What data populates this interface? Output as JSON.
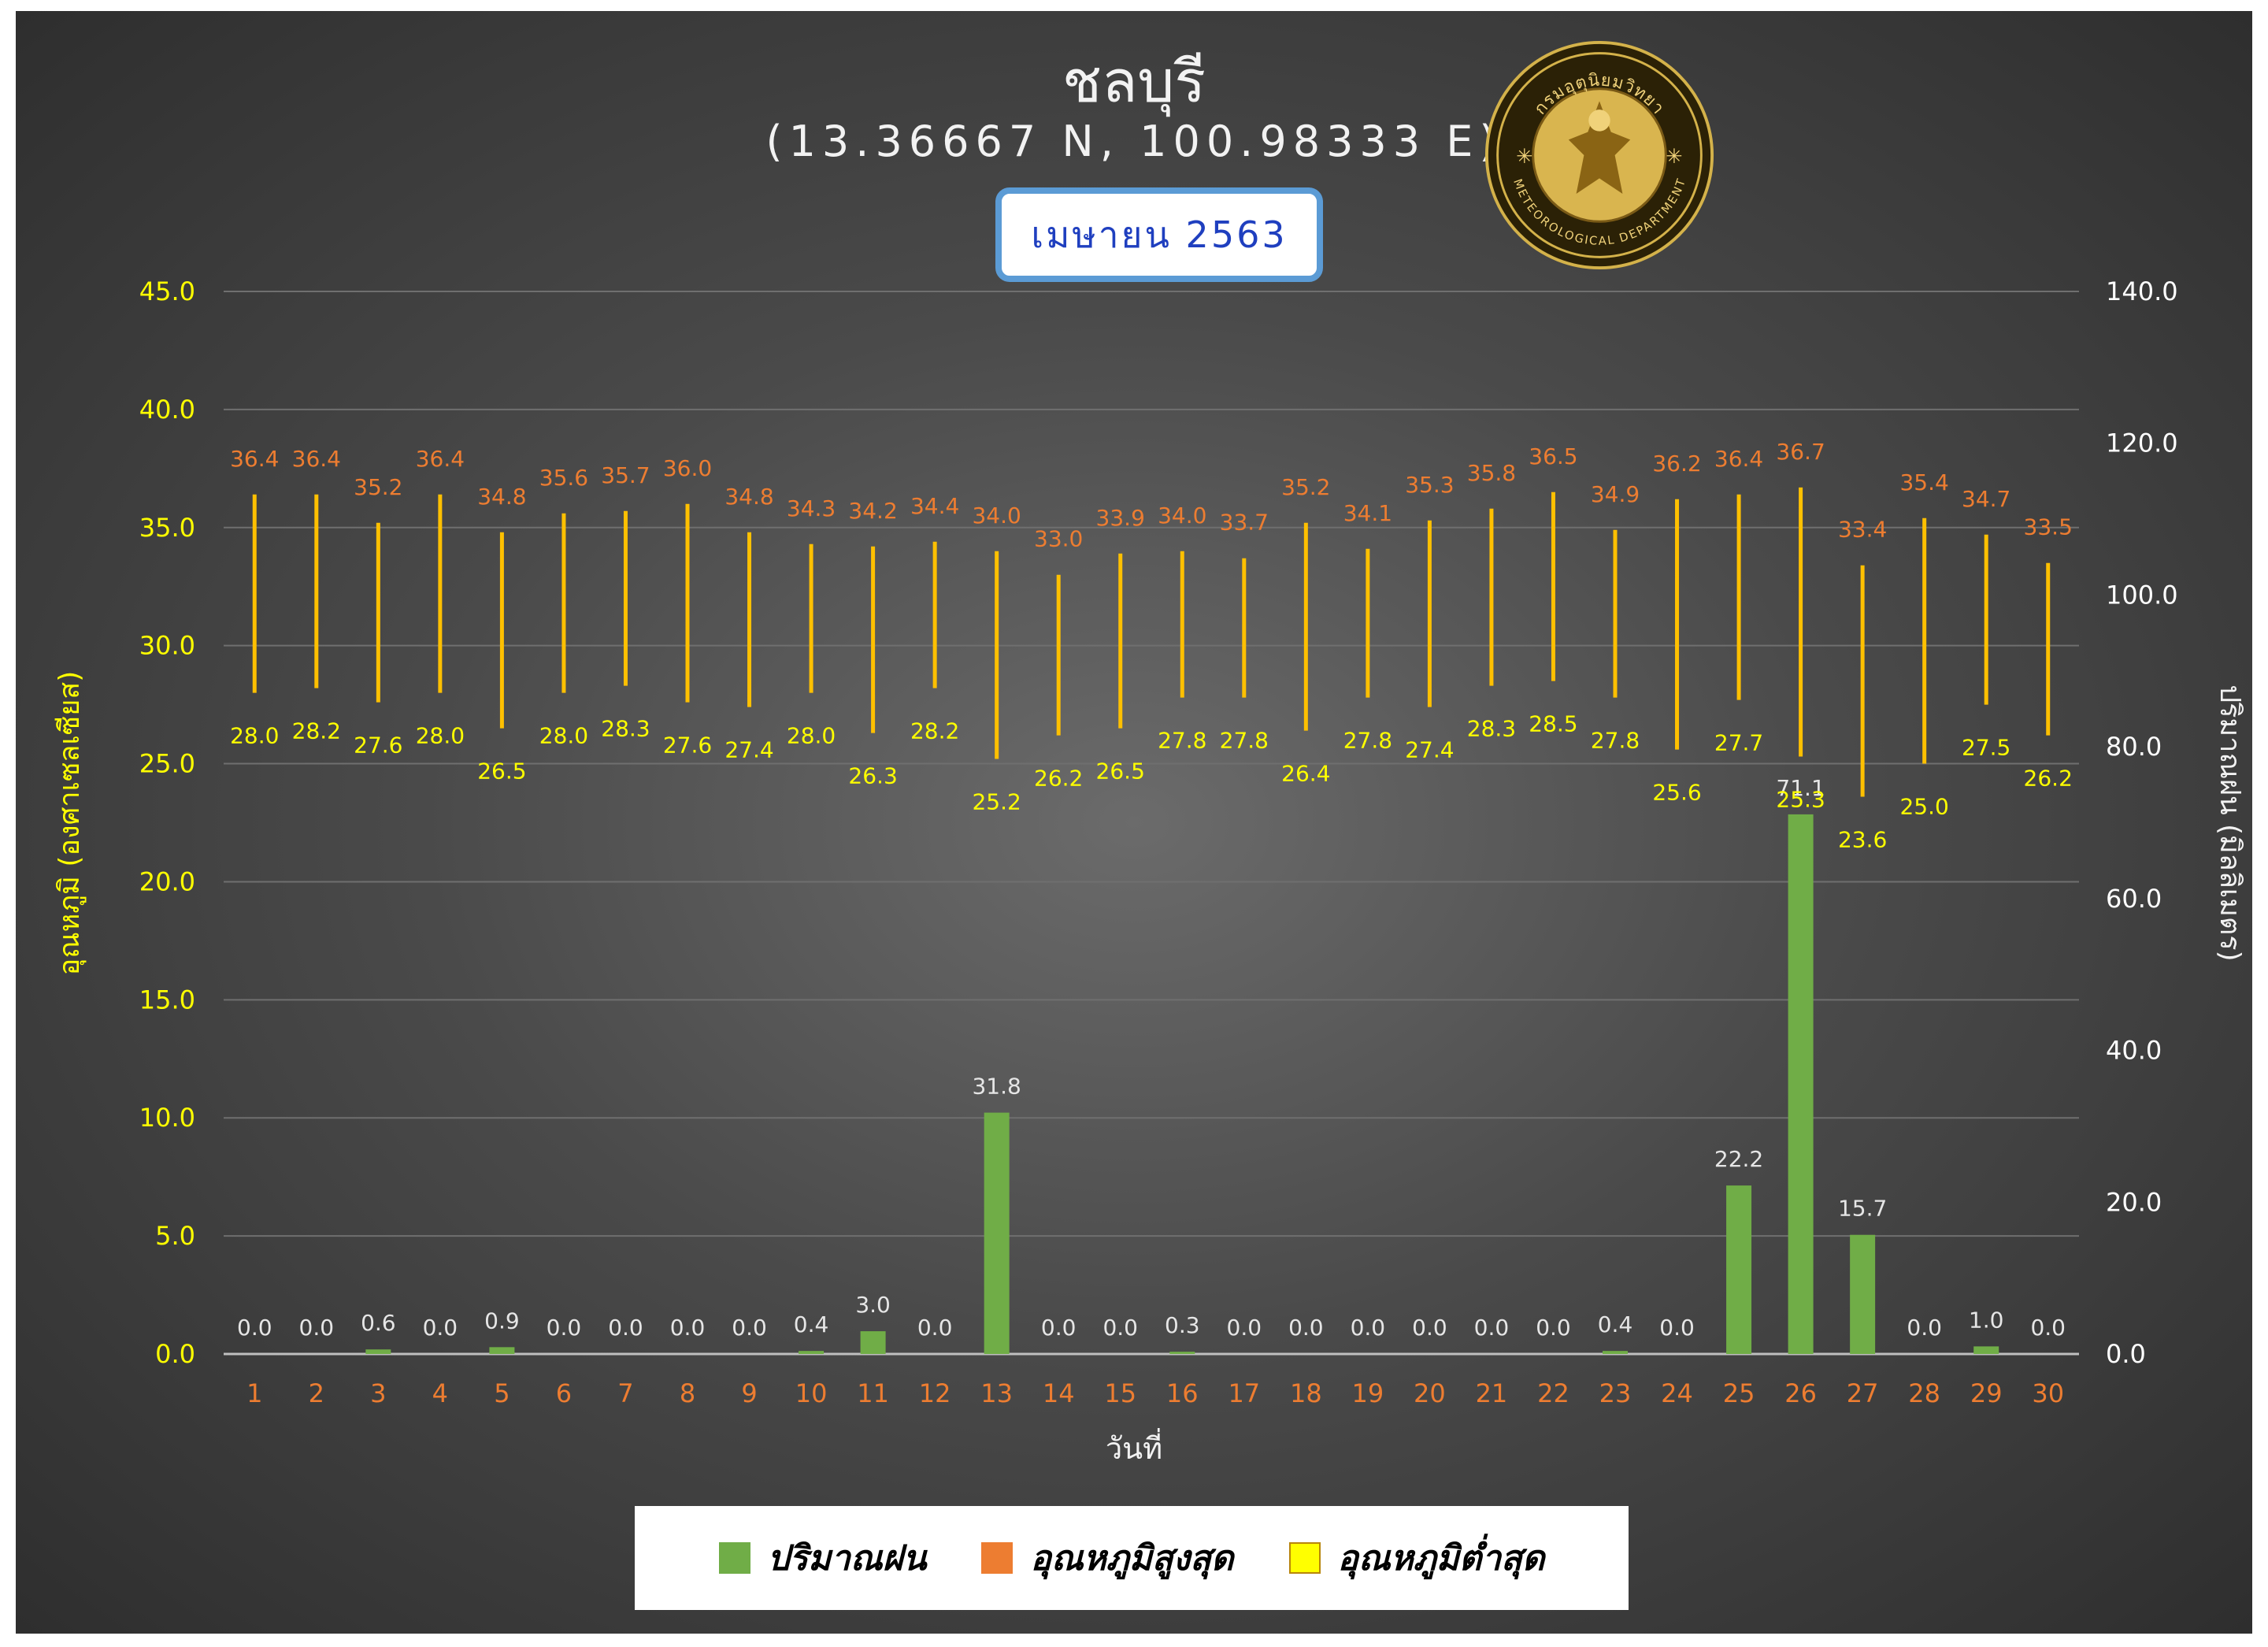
{
  "header": {
    "title": "ชลบุรี",
    "coords": "(13.36667 N, 100.98333 E)",
    "month": "เมษายน 2563",
    "seal_text_top": "กรมอุตุนิยมวิทยา",
    "seal_text_bottom": "METEOROLOGICAL DEPARTMENT"
  },
  "legend": {
    "rain": "ปริมาณฝน",
    "max": "อุณหภูมิสูงสุด",
    "min": "อุณหภูมิต่ำสุด"
  },
  "colors": {
    "rain": "#70ad47",
    "max": "#ed7d31",
    "min": "#ffff00",
    "bar_line": "#ffc000",
    "tick_left": "#ffff00",
    "tick_right": "#ffffff",
    "day_label": "#ed7d31"
  },
  "chart_data": {
    "type": "bar",
    "xlabel": "วันที่",
    "ylabel_left": "อุณหภูมิ (องศาเซลเซียส)",
    "ylabel_right": "ปริมาณฝน (มิลลิเมตร)",
    "ylim_left": [
      0,
      45
    ],
    "ylim_right": [
      0,
      140
    ],
    "left_ticks": [
      "0.0",
      "5.0",
      "10.0",
      "15.0",
      "20.0",
      "25.0",
      "30.0",
      "35.0",
      "40.0",
      "45.0"
    ],
    "right_ticks": [
      "0.0",
      "20.0",
      "40.0",
      "60.0",
      "80.0",
      "100.0",
      "120.0",
      "140.0"
    ],
    "grid": true,
    "legend_position": "bottom",
    "categories": [
      "1",
      "2",
      "3",
      "4",
      "5",
      "6",
      "7",
      "8",
      "9",
      "10",
      "11",
      "12",
      "13",
      "14",
      "15",
      "16",
      "17",
      "18",
      "19",
      "20",
      "21",
      "22",
      "23",
      "24",
      "25",
      "26",
      "27",
      "28",
      "29",
      "30"
    ],
    "series": [
      {
        "name": "ปริมาณฝน",
        "axis": "right",
        "values": [
          0.0,
          0.0,
          0.6,
          0.0,
          0.9,
          0.0,
          0.0,
          0.0,
          0.0,
          0.4,
          3.0,
          0.0,
          31.8,
          0.0,
          0.0,
          0.3,
          0.0,
          0.0,
          0.0,
          0.0,
          0.0,
          0.0,
          0.4,
          0.0,
          22.2,
          71.1,
          15.7,
          0.0,
          1.0,
          0.0
        ],
        "labels": [
          "0.0",
          "0.0",
          "0.6",
          "0.0",
          "0.9",
          "0.0",
          "0.0",
          "0.0",
          "0.0",
          "0.4",
          "3.0",
          "0.0",
          "31.8",
          "0.0",
          "0.0",
          "0.3",
          "0.0",
          "0.0",
          "0.0",
          "0.0",
          "0.0",
          "0.0",
          "0.4",
          "0.0",
          "22.2",
          "71.1",
          "15.7",
          "0.0",
          "1.0",
          "0.0"
        ]
      },
      {
        "name": "อุณหภูมิสูงสุด",
        "axis": "left",
        "values": [
          36.4,
          36.4,
          35.2,
          36.4,
          34.8,
          35.6,
          35.7,
          36.0,
          34.8,
          34.3,
          34.2,
          34.4,
          34.0,
          33.0,
          33.9,
          34.0,
          33.7,
          35.2,
          34.1,
          35.3,
          35.8,
          36.5,
          34.9,
          36.2,
          36.4,
          36.7,
          33.4,
          35.4,
          34.7,
          33.5
        ],
        "labels": [
          "36.4",
          "36.4",
          "35.2",
          "36.4",
          "34.8",
          "35.6",
          "35.7",
          "36.0",
          "34.8",
          "34.3",
          "34.2",
          "34.4",
          "34.0",
          "33.0",
          "33.9",
          "34.0",
          "33.7",
          "35.2",
          "34.1",
          "35.3",
          "35.8",
          "36.5",
          "34.9",
          "36.2",
          "36.4",
          "36.7",
          "33.4",
          "35.4",
          "34.7",
          "33.5"
        ]
      },
      {
        "name": "อุณหภูมิต่ำสุด",
        "axis": "left",
        "values": [
          28.0,
          28.2,
          27.6,
          28.0,
          26.5,
          28.0,
          28.3,
          27.6,
          27.4,
          28.0,
          26.3,
          28.2,
          25.2,
          26.2,
          26.5,
          27.8,
          27.8,
          26.4,
          27.8,
          27.4,
          28.3,
          28.5,
          27.8,
          25.6,
          27.7,
          25.3,
          23.6,
          25.0,
          27.5,
          26.2
        ],
        "labels": [
          "28.0",
          "28.2",
          "27.6",
          "28.0",
          "26.5",
          "28.0",
          "28.3",
          "27.6",
          "27.4",
          "28.0",
          "26.3",
          "28.2",
          "25.2",
          "26.2",
          "26.5",
          "27.8",
          "27.8",
          "26.4",
          "27.8",
          "27.4",
          "28.3",
          "28.5",
          "27.8",
          "25.6",
          "27.7",
          "25.3",
          "23.6",
          "25.0",
          "27.5",
          "26.2"
        ]
      }
    ]
  }
}
